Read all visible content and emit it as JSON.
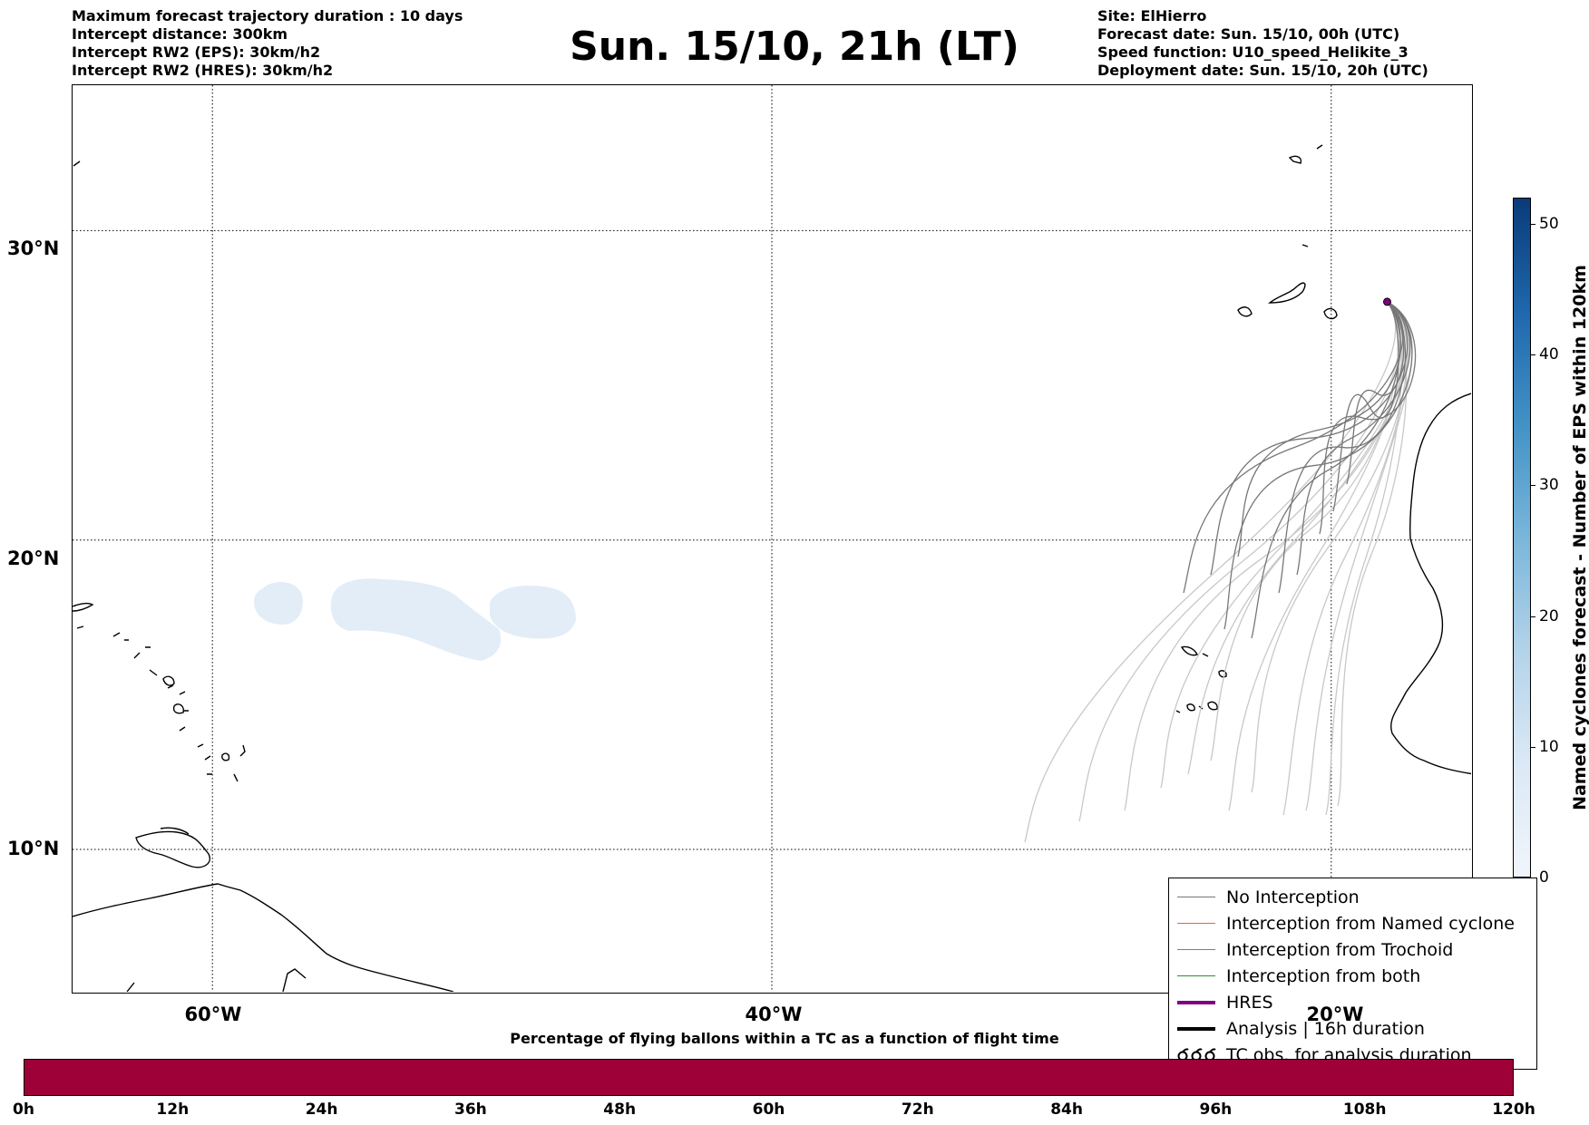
{
  "info_left": [
    "Maximum forecast trajectory duration : 10 days",
    "Intercept distance: 300km",
    "Intercept RW2 (EPS):  30km/h2",
    "Intercept RW2 (HRES): 30km/h2"
  ],
  "title": "Sun. 15/10, 21h (LT)",
  "info_right": [
    "Site: ElHierro",
    "Forecast date: Sun. 15/10, 00h (UTC)",
    "Speed function: U10_speed_Helikite_3",
    "Deployment date: Sun. 15/10, 20h (UTC)"
  ],
  "map": {
    "lat_labels": [
      "30°N",
      "20°N",
      "10°N"
    ],
    "lon_labels": [
      "60°W",
      "40°W",
      "20°W"
    ],
    "grid_lats": [
      30,
      20,
      10
    ],
    "grid_lons": [
      -60,
      -40,
      -20
    ],
    "lon_range": [
      -65,
      -15
    ],
    "lat_range": [
      5.4,
      34.7
    ],
    "site": {
      "lon": -18.0,
      "lat": 27.7
    },
    "cyclone_area_color": "#e3edf7",
    "trajectory_colors": {
      "near": "#777777",
      "far": "#c8c8c8"
    }
  },
  "legend": [
    {
      "label": "No Interception",
      "color": "#777777",
      "style": "thin"
    },
    {
      "label": "Interception from Named cyclone",
      "color": "#f26522",
      "style": "thin"
    },
    {
      "label": "Interception from Trochoid",
      "color": "#8b8b2b",
      "style": "thin"
    },
    {
      "label": "Interception from both",
      "color": "#2e8b3a",
      "style": "thin"
    },
    {
      "label": "HRES",
      "color": "#800080",
      "style": "thick"
    },
    {
      "label": "Analysis | 16h duration",
      "color": "#000000",
      "style": "thick"
    },
    {
      "label": "TC obs. for analysis duration",
      "color": "#000000",
      "style": "cyclone-icon"
    }
  ],
  "colorbar_right": {
    "label": "Named cyclones forecast - Number of EPS within 120km",
    "ticks": [
      "0",
      "10",
      "20",
      "30",
      "40",
      "50"
    ]
  },
  "colorbar_bottom": {
    "title": "Percentage of flying ballons within a TC as a function of flight time",
    "ticks": [
      "0h",
      "12h",
      "24h",
      "36h",
      "48h",
      "60h",
      "72h",
      "84h",
      "96h",
      "108h",
      "120h"
    ],
    "color": "#9e0038"
  }
}
